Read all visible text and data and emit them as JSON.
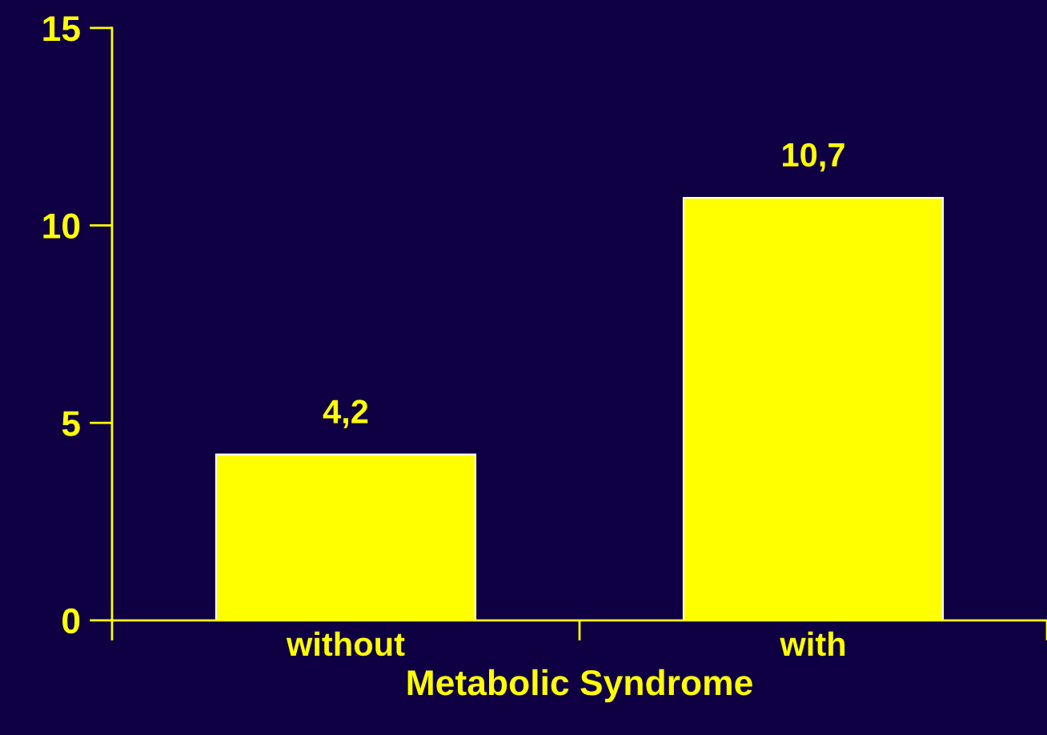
{
  "chart_data": {
    "type": "bar",
    "xlabel": "Metabolic Syndrome",
    "categories": [
      "without",
      "with"
    ],
    "values": [
      4.2,
      10.7
    ],
    "value_labels": [
      "4,2",
      "10,7"
    ],
    "color": "#ffff00",
    "ylim": [
      0,
      15
    ],
    "yticks": [
      0,
      5,
      10,
      15
    ],
    "grid": false
  }
}
